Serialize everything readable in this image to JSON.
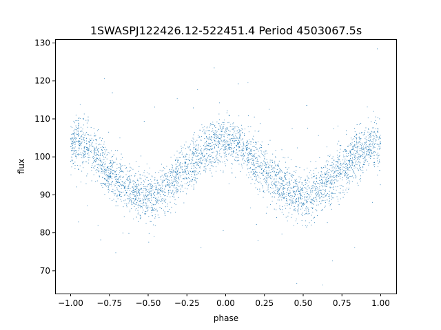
{
  "chart_data": {
    "type": "scatter",
    "title": "1SWASPJ122426.12-522451.4 Period 4503067.5s",
    "xlabel": "phase",
    "ylabel": "flux",
    "xlim": [
      -1.1,
      1.1
    ],
    "ylim": [
      64.0,
      131.0
    ],
    "xticks": [
      -1.0,
      -0.75,
      -0.5,
      -0.25,
      0.0,
      0.25,
      0.5,
      0.75,
      1.0
    ],
    "xtick_labels": [
      "−1.00",
      "−0.75",
      "−0.50",
      "−0.25",
      "0.00",
      "0.25",
      "0.50",
      "0.75",
      "1.00"
    ],
    "yticks": [
      70,
      80,
      90,
      100,
      110,
      120,
      130
    ],
    "ytick_labels": [
      "70",
      "80",
      "90",
      "100",
      "110",
      "120",
      "130"
    ],
    "grid": false,
    "marker_color": "#1f77b4",
    "series": [
      {
        "x": [
          -1.0,
          -0.98,
          -0.96,
          -0.94,
          -0.92,
          -0.9,
          -0.88,
          -0.86,
          -0.84,
          -0.82,
          -0.8,
          -0.78,
          -0.76,
          -0.74,
          -0.72,
          -0.7,
          -0.68,
          -0.66,
          -0.64,
          -0.62,
          -0.6,
          -0.58,
          -0.56,
          -0.54,
          -0.52,
          -0.5,
          -0.48,
          -0.46,
          -0.44,
          -0.42,
          -0.4,
          -0.38,
          -0.36,
          -0.34,
          -0.32,
          -0.3,
          -0.28,
          -0.26,
          -0.24,
          -0.22,
          -0.2,
          -0.18,
          -0.16,
          -0.14,
          -0.12,
          -0.1,
          -0.08,
          -0.06,
          -0.04,
          -0.02,
          0.0,
          0.02,
          0.04,
          0.06,
          0.08,
          0.1,
          0.12,
          0.14,
          0.16,
          0.18,
          0.2,
          0.22,
          0.24,
          0.26,
          0.28,
          0.3,
          0.32,
          0.34,
          0.36,
          0.38,
          0.4,
          0.42,
          0.44,
          0.46,
          0.48,
          0.5,
          0.52,
          0.54,
          0.56,
          0.58,
          0.6,
          0.62,
          0.64,
          0.66,
          0.68,
          0.7,
          0.72,
          0.74,
          0.76,
          0.78,
          0.8,
          0.82,
          0.84,
          0.86,
          0.88,
          0.9,
          0.92,
          0.94,
          0.96,
          0.98,
          1.0
        ],
        "y": [
          102.5,
          103.4,
          104.0,
          104.2,
          104.0,
          103.4,
          102.6,
          101.5,
          100.3,
          99.1,
          97.9,
          96.9,
          96.0,
          95.3,
          94.6,
          94.0,
          93.5,
          92.9,
          92.3,
          91.7,
          91.1,
          90.6,
          90.1,
          89.7,
          89.4,
          89.3,
          89.3,
          89.5,
          89.9,
          90.5,
          91.2,
          92.0,
          92.8,
          93.6,
          94.4,
          95.1,
          95.8,
          96.5,
          97.1,
          97.8,
          98.5,
          99.3,
          100.1,
          100.9,
          101.7,
          102.4,
          103.0,
          103.5,
          103.9,
          104.1,
          104.2,
          104.2,
          104.0,
          103.6,
          103.1,
          102.5,
          101.8,
          101.0,
          100.1,
          99.2,
          98.3,
          97.5,
          96.7,
          96.0,
          95.3,
          94.6,
          94.0,
          93.4,
          92.8,
          92.2,
          91.6,
          91.0,
          90.5,
          90.1,
          89.8,
          89.7,
          89.7,
          89.9,
          90.2,
          90.7,
          91.3,
          92.0,
          92.7,
          93.4,
          94.1,
          94.8,
          95.5,
          96.2,
          96.9,
          97.6,
          98.4,
          99.2,
          100.0,
          100.8,
          101.5,
          102.1,
          102.6,
          103.0,
          103.2,
          103.2,
          103.0
        ],
        "scatter_band": 5.5
      }
    ]
  }
}
